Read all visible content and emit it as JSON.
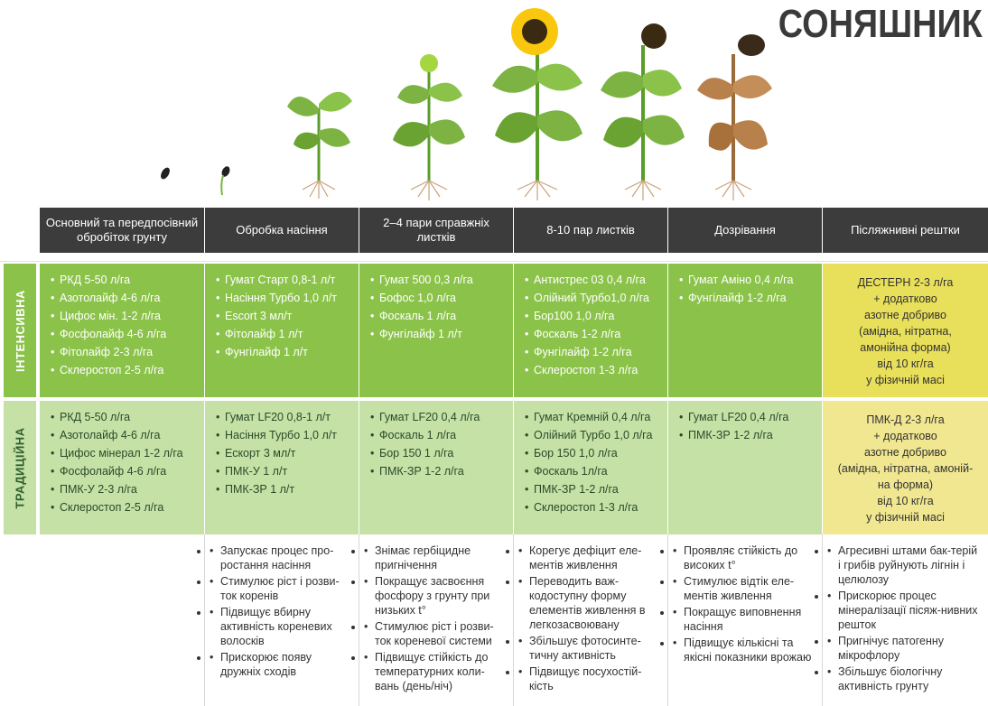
{
  "title": "СОНЯШНИК",
  "columns": [
    "Основний  та передпосівний обробіток грунту",
    "Обробка насіння",
    "2–4 пари справжніх листків",
    "8-10 пар листків",
    "Дозрівання",
    "Післяжнивні рештки"
  ],
  "rows": {
    "intensive": {
      "label": "ІНТЕНСИВНА",
      "cells": [
        [
          "РКД 5-50 л/га",
          "Азотолайф 4-6 л/га",
          "Цифос мін. 1-2 л/га",
          "Фосфолайф 4-6 л/га",
          "Фітолайф 2-3 л/га",
          "Склеростоп 2-5 л/га"
        ],
        [
          "Гумат Старт 0,8-1 л/т",
          "Насіння Турбо 1,0 л/т",
          "Escort 3 мл/т",
          "Фітолайф  1 л/т",
          "Фунгілайф 1 л/т"
        ],
        [
          "Гумат 500 0,3 л/га",
          "Бофос 1,0 л/га",
          "Фоскаль 1 л/га",
          "Фунгілайф 1 л/т"
        ],
        [
          "Антистрес 03 0,4 л/га",
          "Олійний Турбо1,0 л/га",
          "Бор100 1,0 л/га",
          "Фоскаль 1-2 л/га",
          "Фунгілайф 1-2 л/га",
          "Склеростоп 1-3 л/га"
        ],
        [
          "Гумат Аміно 0,4 л/га",
          "Фунгілайф 1-2 л/га"
        ],
        [
          "ДЕСТЕРН 2-3 л/га",
          "+ додатково",
          "азотне добриво",
          "(амідна, нітратна,",
          "амонійна форма)",
          "від 10 кг/га",
          "у фізичній масі"
        ]
      ]
    },
    "traditional": {
      "label": "ТРАДИЦІЙНА",
      "cells": [
        [
          "РКД 5-50 л/га",
          "Азотолайф 4-6 л/га",
          "Цифос мінерал 1-2 л/га",
          "Фосфолайф 4-6 л/га",
          "ПМК-У 2-3 л/га",
          "Склеростоп 2-5 л/га"
        ],
        [
          "Гумат LF20 0,8-1 л/т",
          "Насіння Турбо 1,0 л/т",
          "Ескорт 3 мл/т",
          "ПМК-У 1 л/т",
          "ПМК-ЗР 1 л/т"
        ],
        [
          "Гумат LF20 0,4 л/га",
          "Фоскаль 1 л/га",
          "Бор 150 1 л/га",
          "ПМК-ЗР 1-2 л/га"
        ],
        [
          "Гумат Кремній 0,4 л/га",
          "Олійний Турбо 1,0 л/га",
          "Бор 150 1,0 л/га",
          "Фоскаль 1л/га",
          "ПМК-ЗР 1-2 л/га",
          "Склеростоп 1-3 л/га"
        ],
        [
          "Гумат LF20 0,4 л/га",
          "ПМК-ЗР 1-2 л/га"
        ],
        [
          "ПМК-Д 2-3 л/га",
          "+ додатково",
          "азотне добриво",
          "(амідна, нітратна, амоній-",
          "на форма)",
          "від 10 кг/га",
          "у фізичній масі"
        ]
      ]
    }
  },
  "notes": [
    [],
    [
      "Запускає процес про-ростання насіння",
      "Стимулює ріст і розви-ток коренів",
      "Підвищує вбирну активність кореневих волосків",
      "Прискорює появу дружніх сходів"
    ],
    [
      "Знімає гербіцидне пригнічення",
      "Покращує засвоєння фосфору з грунту при низьких t°",
      "Стимулює ріст і розви-ток кореневої системи",
      "Підвищує стійкість до температурних коли-вань (день/ніч)"
    ],
    [
      "Корегує дефіцит еле-ментів живлення",
      "Переводить важ-кодоступну форму елементів живлення в легкозасвоювану",
      "Збільшує фотосинте-тичну активність",
      "Підвищує посухостій-кість"
    ],
    [
      "Проявляє стійкість до високих t°",
      "Стимулює відтік еле-ментів живлення",
      "Покращує виповнення насіння",
      "Підвищує кількісні та якісні показники врожаю"
    ],
    [
      "Агресивні штами бак-терій і грибів руйнують лігнін і целюлозу",
      "Прискорює процес мінералізації пісяж-нивних решток",
      "Пригнічує патогенну мікрофлору",
      "Збільшує біологічну активність грунту"
    ]
  ],
  "colors": {
    "header": "#3c3c3c",
    "intensive": "#8bc34a",
    "traditional": "#c5e1a5",
    "residue_intensive": "#e8df5a",
    "residue_traditional": "#f1e790"
  }
}
